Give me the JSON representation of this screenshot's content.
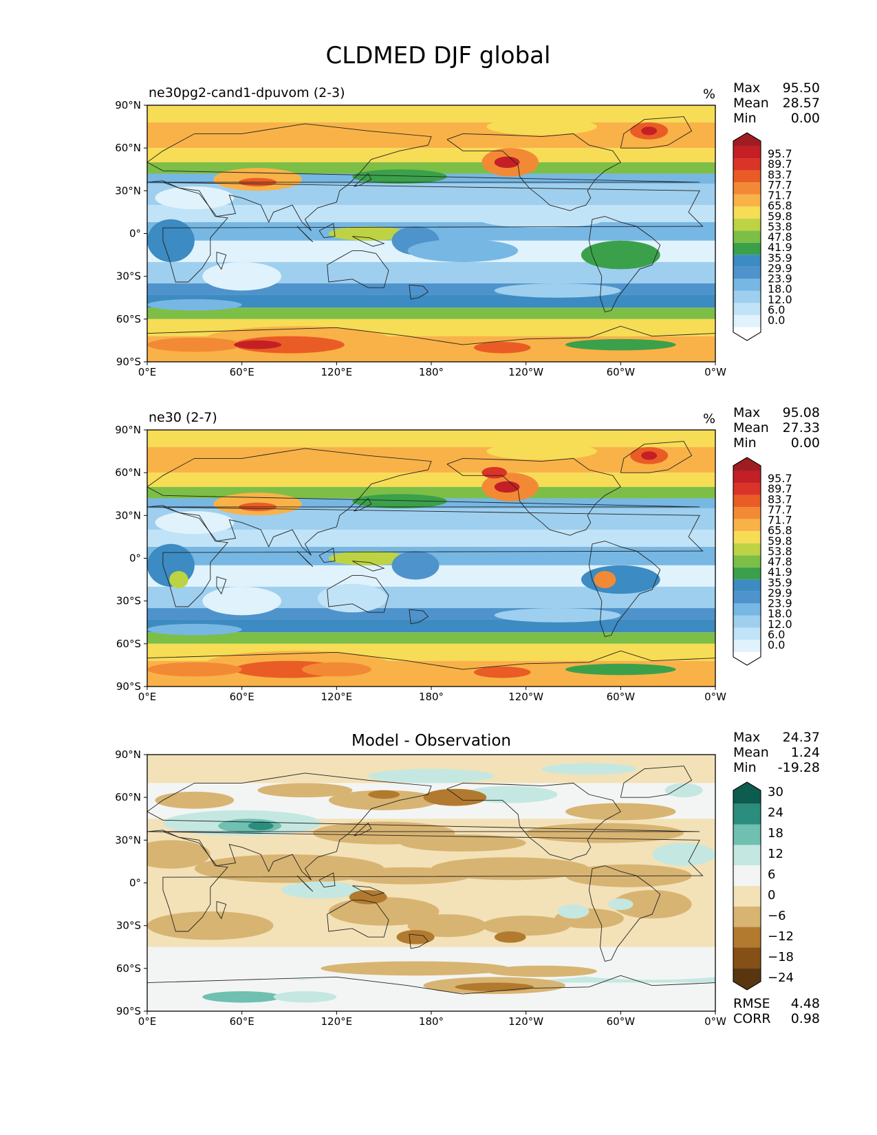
{
  "figure": {
    "title": "CLDMED DJF global"
  },
  "axes": {
    "x_ticks": [
      "0°E",
      "60°E",
      "120°E",
      "180°",
      "120°W",
      "60°W",
      "0°W"
    ],
    "y_ticks": [
      "90°N",
      "60°N",
      "30°N",
      "0°",
      "30°S",
      "60°S",
      "90°S"
    ]
  },
  "chart_data": [
    {
      "type": "heatmap",
      "title": "ne30pg2-cand1-dpuvom (2-3)",
      "units": "%",
      "stats": {
        "labels": [
          "Max",
          "Mean",
          "Min"
        ],
        "values": [
          "95.50",
          "28.57",
          "0.00"
        ]
      },
      "colorbar": {
        "levels": [
          "0.0",
          "6.0",
          "12.0",
          "18.0",
          "23.9",
          "29.9",
          "35.9",
          "41.9",
          "47.8",
          "53.8",
          "59.8",
          "65.8",
          "71.7",
          "77.7",
          "83.7",
          "89.7",
          "95.7"
        ],
        "colors": [
          "#ffffff",
          "#e0f2fc",
          "#c1e3f7",
          "#9ecfee",
          "#77b7e3",
          "#4f93cc",
          "#3c8bc2",
          "#3aa14a",
          "#7dbe47",
          "#bdd343",
          "#f7dc55",
          "#f9b248",
          "#f28a35",
          "#ea5c25",
          "#da3327",
          "#c41f26",
          "#9f1d21"
        ],
        "extend": "both"
      },
      "xlim": [
        0,
        360
      ],
      "ylim": [
        -90,
        90
      ]
    },
    {
      "type": "heatmap",
      "title": "ne30 (2-7)",
      "units": "%",
      "stats": {
        "labels": [
          "Max",
          "Mean",
          "Min"
        ],
        "values": [
          "95.08",
          "27.33",
          "0.00"
        ]
      },
      "colorbar": {
        "levels": [
          "0.0",
          "6.0",
          "12.0",
          "18.0",
          "23.9",
          "29.9",
          "35.9",
          "41.9",
          "47.8",
          "53.8",
          "59.8",
          "65.8",
          "71.7",
          "77.7",
          "83.7",
          "89.7",
          "95.7"
        ],
        "colors": [
          "#ffffff",
          "#e0f2fc",
          "#c1e3f7",
          "#9ecfee",
          "#77b7e3",
          "#4f93cc",
          "#3c8bc2",
          "#3aa14a",
          "#7dbe47",
          "#bdd343",
          "#f7dc55",
          "#f9b248",
          "#f28a35",
          "#ea5c25",
          "#da3327",
          "#c41f26",
          "#9f1d21"
        ],
        "extend": "both"
      },
      "xlim": [
        0,
        360
      ],
      "ylim": [
        -90,
        90
      ]
    },
    {
      "type": "heatmap",
      "title": "Model - Observation",
      "units": "",
      "stats": {
        "labels": [
          "Max",
          "Mean",
          "Min"
        ],
        "values": [
          "24.37",
          "1.24",
          "-19.28"
        ]
      },
      "colorbar": {
        "levels": [
          "30",
          "24",
          "18",
          "12",
          "6",
          "0",
          "−6",
          "−12",
          "−18",
          "−24"
        ],
        "colors": [
          "#0c5c4f",
          "#2a8d7e",
          "#6fc0b1",
          "#c4e8e1",
          "#f3f5f4",
          "#f3e1b8",
          "#d8b472",
          "#b27a2f",
          "#845015",
          "#5a3610"
        ],
        "extend": "both"
      },
      "metrics": {
        "labels": [
          "RMSE",
          "CORR"
        ],
        "values": [
          "4.48",
          "0.98"
        ]
      },
      "xlim": [
        0,
        360
      ],
      "ylim": [
        -90,
        90
      ]
    }
  ]
}
